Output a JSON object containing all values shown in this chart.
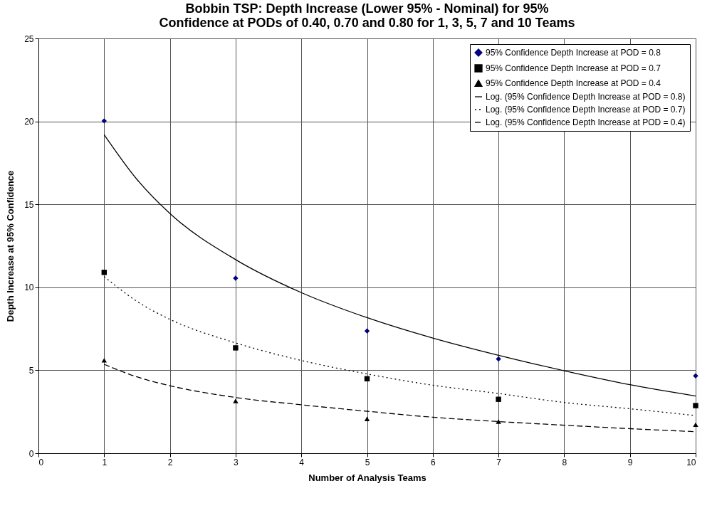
{
  "chart_data": {
    "type": "scatter",
    "title": "Bobbin TSP:  Depth Increase (Lower 95% - Nominal) for 95%\nConfidence at PODs of 0.40, 0.70 and 0.80 for 1, 3, 5, 7 and 10 Teams",
    "xlabel": "Number of Analysis Teams",
    "ylabel": "Depth Increase at 95% Confidence",
    "x": [
      1,
      3,
      5,
      7,
      10
    ],
    "xlim": [
      0,
      10
    ],
    "xticks": [
      0,
      1,
      2,
      3,
      4,
      5,
      6,
      7,
      8,
      9,
      10
    ],
    "ylim": [
      0,
      25
    ],
    "yticks": [
      0,
      5,
      10,
      15,
      20,
      25
    ],
    "grid": true,
    "legend": "top right",
    "series": [
      {
        "name": "95% Confidence Depth Increase at POD = 0.8",
        "type": "scatter",
        "marker": "diamond",
        "color": "#000080",
        "values": [
          20.03,
          10.55,
          7.37,
          5.68,
          4.66
        ]
      },
      {
        "name": "95% Confidence Depth Increase at POD = 0.7",
        "type": "scatter",
        "marker": "square",
        "color": "#000000",
        "values": [
          10.9,
          6.35,
          4.49,
          3.25,
          2.87
        ]
      },
      {
        "name": "95% Confidence Depth Increase at POD = 0.4",
        "type": "scatter",
        "marker": "triangle",
        "color": "#000000",
        "values": [
          5.6,
          3.15,
          2.07,
          1.91,
          1.72
        ]
      },
      {
        "name": "Log. (95% Confidence Depth Increase at POD = 0.8)",
        "type": "line",
        "line_style": "solid",
        "color": "#000000",
        "x": [
          1,
          1.5,
          2,
          3,
          4,
          5,
          6,
          7,
          8,
          9,
          10
        ],
        "values": [
          19.2,
          16.5,
          14.45,
          11.67,
          9.68,
          8.17,
          6.94,
          5.9,
          4.97,
          4.13,
          3.45
        ]
      },
      {
        "name": "Log. (95% Confidence Depth Increase at POD = 0.7)",
        "type": "line",
        "line_style": "dotted",
        "color": "#000000",
        "x": [
          1,
          1.5,
          2,
          3,
          4,
          5,
          6,
          7,
          8,
          9,
          10
        ],
        "values": [
          10.65,
          9.15,
          8.07,
          6.65,
          5.59,
          4.78,
          4.1,
          3.6,
          3.06,
          2.68,
          2.27
        ]
      },
      {
        "name": "Log. (95% Confidence Depth Increase at POD = 0.4)",
        "type": "line",
        "line_style": "dashed",
        "color": "#000000",
        "x": [
          1,
          1.5,
          2,
          3,
          4,
          5,
          6,
          7,
          8,
          9,
          10
        ],
        "values": [
          5.36,
          4.6,
          4.07,
          3.36,
          2.92,
          2.53,
          2.17,
          1.91,
          1.69,
          1.48,
          1.3
        ]
      }
    ]
  }
}
